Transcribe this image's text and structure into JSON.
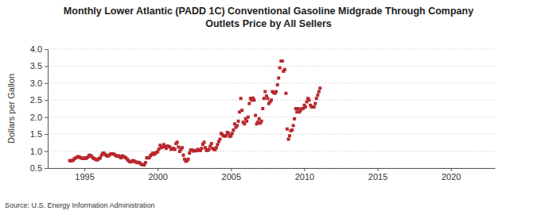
{
  "chart_data": {
    "type": "scatter",
    "title": "Monthly Lower Atlantic (PADD 1C) Conventional Gasoline Midgrade Through Company Outlets Price by All Sellers",
    "y_label": "Dollars per Gallon",
    "source": "Source: U.S. Energy Information Administration",
    "color": "#b8282e",
    "marker": "square",
    "grid": true,
    "xlim": [
      1992.5,
      2023
    ],
    "xticks": [
      1995,
      2000,
      2005,
      2010,
      2015,
      2020
    ],
    "ylim": [
      0.5,
      4
    ],
    "yticks": [
      0.5,
      {
        "value": 1,
        "label": "1.0"
      },
      1.5,
      {
        "value": 2,
        "label": "2.0"
      },
      2.5,
      {
        "value": 3,
        "label": "3.0"
      },
      3.5,
      {
        "value": 4,
        "label": "4.0"
      }
    ],
    "x": [
      1994,
      1994.08,
      1994.17,
      1994.25,
      1994.33,
      1994.42,
      1994.5,
      1994.58,
      1994.67,
      1994.75,
      1994.83,
      1994.92,
      1995,
      1995.08,
      1995.17,
      1995.25,
      1995.33,
      1995.42,
      1995.5,
      1995.58,
      1995.67,
      1995.75,
      1995.83,
      1995.92,
      1996,
      1996.08,
      1996.17,
      1996.25,
      1996.33,
      1996.42,
      1996.5,
      1996.58,
      1996.67,
      1996.75,
      1996.83,
      1996.92,
      1997,
      1997.08,
      1997.17,
      1997.25,
      1997.33,
      1997.42,
      1997.5,
      1997.58,
      1997.67,
      1997.75,
      1997.83,
      1997.92,
      1998,
      1998.08,
      1998.17,
      1998.25,
      1998.33,
      1998.42,
      1998.5,
      1998.58,
      1998.67,
      1998.75,
      1998.83,
      1998.92,
      1999,
      1999.08,
      1999.17,
      1999.25,
      1999.33,
      1999.42,
      1999.5,
      1999.58,
      1999.67,
      1999.75,
      1999.83,
      1999.92,
      2000,
      2000.08,
      2000.17,
      2000.25,
      2000.33,
      2000.42,
      2000.5,
      2000.58,
      2000.67,
      2000.75,
      2000.83,
      2000.92,
      2001,
      2001.08,
      2001.17,
      2001.25,
      2001.33,
      2001.42,
      2001.5,
      2001.58,
      2001.67,
      2001.75,
      2001.83,
      2001.92,
      2002,
      2002.08,
      2002.17,
      2002.25,
      2002.33,
      2002.42,
      2002.5,
      2002.58,
      2002.67,
      2002.75,
      2002.83,
      2002.92,
      2003,
      2003.08,
      2003.17,
      2003.25,
      2003.33,
      2003.42,
      2003.5,
      2003.58,
      2003.67,
      2003.75,
      2003.83,
      2003.92,
      2004,
      2004.08,
      2004.17,
      2004.25,
      2004.33,
      2004.42,
      2004.5,
      2004.58,
      2004.67,
      2004.75,
      2004.83,
      2004.92,
      2005,
      2005.08,
      2005.17,
      2005.25,
      2005.33,
      2005.42,
      2005.5,
      2005.58,
      2005.67,
      2005.75,
      2005.83,
      2005.92,
      2006,
      2006.08,
      2006.17,
      2006.25,
      2006.33,
      2006.42,
      2006.5,
      2006.58,
      2006.67,
      2006.75,
      2006.83,
      2006.92,
      2007,
      2007.08,
      2007.17,
      2007.25,
      2007.33,
      2007.42,
      2007.5,
      2007.58,
      2007.67,
      2007.75,
      2007.83,
      2007.92,
      2008,
      2008.08,
      2008.17,
      2008.25,
      2008.33,
      2008.42,
      2008.5,
      2008.58,
      2008.67,
      2008.75,
      2008.83,
      2008.92,
      2009,
      2009.08,
      2009.17,
      2009.25,
      2009.33,
      2009.42,
      2009.5,
      2009.58,
      2009.67,
      2009.75,
      2009.83,
      2009.92,
      2010,
      2010.08,
      2010.17,
      2010.25,
      2010.33,
      2010.42,
      2010.5,
      2010.58,
      2010.67,
      2010.75,
      2010.83,
      2010.92,
      2011,
      2011.08
    ],
    "values": [
      0.72,
      0.71,
      0.72,
      0.74,
      0.78,
      0.8,
      0.82,
      0.84,
      0.82,
      0.8,
      0.79,
      0.78,
      0.8,
      0.78,
      0.8,
      0.83,
      0.88,
      0.87,
      0.84,
      0.8,
      0.78,
      0.76,
      0.74,
      0.75,
      0.78,
      0.8,
      0.88,
      0.93,
      0.94,
      0.9,
      0.87,
      0.85,
      0.87,
      0.9,
      0.92,
      0.92,
      0.91,
      0.89,
      0.86,
      0.85,
      0.86,
      0.83,
      0.8,
      0.86,
      0.84,
      0.82,
      0.8,
      0.76,
      0.72,
      0.69,
      0.68,
      0.7,
      0.72,
      0.7,
      0.68,
      0.66,
      0.67,
      0.66,
      0.63,
      0.6,
      0.6,
      0.59,
      0.66,
      0.8,
      0.8,
      0.8,
      0.86,
      0.9,
      0.94,
      0.9,
      0.93,
      0.96,
      0.98,
      1.06,
      1.17,
      1.1,
      1.12,
      1.19,
      1.13,
      1.08,
      1.15,
      1.13,
      1.12,
      1.05,
      1.06,
      1.08,
      1.05,
      1.22,
      1.26,
      1.12,
      0.99,
      1.05,
      1.1,
      0.88,
      0.76,
      0.7,
      0.72,
      0.76,
      0.94,
      1.03,
      1.03,
      1.0,
      1.02,
      1.01,
      1.01,
      1.05,
      1.02,
      1.02,
      1.08,
      1.2,
      1.26,
      1.1,
      1.02,
      1.02,
      1.05,
      1.14,
      1.22,
      1.08,
      1.05,
      1.04,
      1.1,
      1.19,
      1.28,
      1.35,
      1.52,
      1.48,
      1.45,
      1.44,
      1.45,
      1.55,
      1.52,
      1.43,
      1.45,
      1.52,
      1.62,
      1.8,
      1.7,
      1.75,
      1.88,
      2.15,
      2.55,
      2.2,
      1.85,
      1.8,
      1.95,
      1.88,
      2.0,
      2.4,
      2.55,
      2.5,
      2.56,
      2.5,
      2.05,
      1.8,
      1.85,
      1.95,
      1.82,
      1.88,
      2.25,
      2.55,
      2.75,
      2.62,
      2.55,
      2.4,
      2.45,
      2.5,
      2.75,
      2.72,
      2.7,
      2.75,
      2.95,
      3.15,
      3.45,
      3.65,
      3.65,
      3.35,
      3.4,
      2.7,
      1.65,
      1.35,
      1.45,
      1.6,
      1.62,
      1.75,
      1.95,
      2.25,
      2.15,
      2.25,
      2.15,
      2.2,
      2.25,
      2.25,
      2.35,
      2.3,
      2.45,
      2.55,
      2.5,
      2.35,
      2.3,
      2.3,
      2.3,
      2.4,
      2.55,
      2.65,
      2.75,
      2.85
    ]
  }
}
